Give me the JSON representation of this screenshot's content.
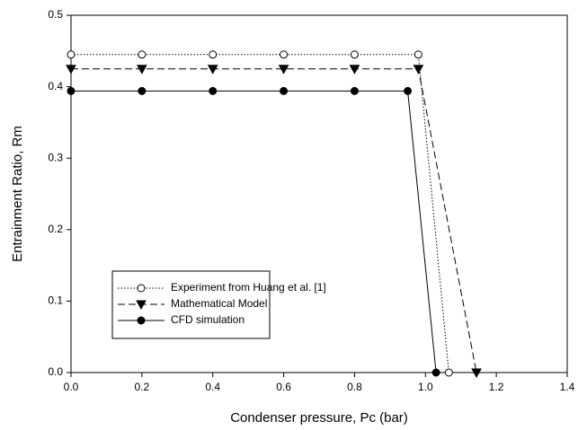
{
  "chart_data": {
    "type": "line",
    "x_label": "Condenser pressure, Pc (bar)",
    "y_label": "Entrainment Ratio, Rm",
    "xlim": [
      0,
      1.4
    ],
    "ylim": [
      0,
      0.5
    ],
    "xticks": [
      {
        "value": 0,
        "label": "0.0"
      },
      {
        "value": 0.2,
        "label": "0.2"
      },
      {
        "value": 0.4,
        "label": "0.4"
      },
      {
        "value": 0.6,
        "label": "0.6"
      },
      {
        "value": 0.8,
        "label": "0.8"
      },
      {
        "value": 1,
        "label": "1.0"
      },
      {
        "value": 1.2,
        "label": "1.2"
      },
      {
        "value": 1.4,
        "label": "1.4"
      }
    ],
    "yticks": [
      {
        "value": 0,
        "label": "0.0"
      },
      {
        "value": 0.1,
        "label": "0.1"
      },
      {
        "value": 0.2,
        "label": "0.2"
      },
      {
        "value": 0.3,
        "label": "0.3"
      },
      {
        "value": 0.4,
        "label": "0.4"
      },
      {
        "value": 0.5,
        "label": "0.5"
      }
    ],
    "grid": false,
    "legend": "lower-left",
    "series": [
      {
        "name": "Experiment from Huang et al. [1]",
        "color": "#000000",
        "dash": "dotted",
        "marker": "open-circle",
        "x": [
          0,
          0.2,
          0.4,
          0.6,
          0.8,
          0.98,
          1.066
        ],
        "values": [
          0.445,
          0.445,
          0.445,
          0.445,
          0.445,
          0.445,
          0
        ]
      },
      {
        "name": "Mathematical Model",
        "color": "#000000",
        "dash": "dashed",
        "marker": "filled-triangle-down",
        "x": [
          0,
          0.2,
          0.4,
          0.6,
          0.8,
          0.98,
          1.144
        ],
        "values": [
          0.425,
          0.425,
          0.425,
          0.425,
          0.425,
          0.425,
          0
        ]
      },
      {
        "name": "CFD simulation",
        "color": "#000000",
        "dash": "solid",
        "marker": "filled-circle",
        "x": [
          0,
          0.2,
          0.4,
          0.6,
          0.8,
          0.95,
          1.03
        ],
        "values": [
          0.394,
          0.394,
          0.394,
          0.394,
          0.394,
          0.394,
          0
        ]
      }
    ]
  }
}
